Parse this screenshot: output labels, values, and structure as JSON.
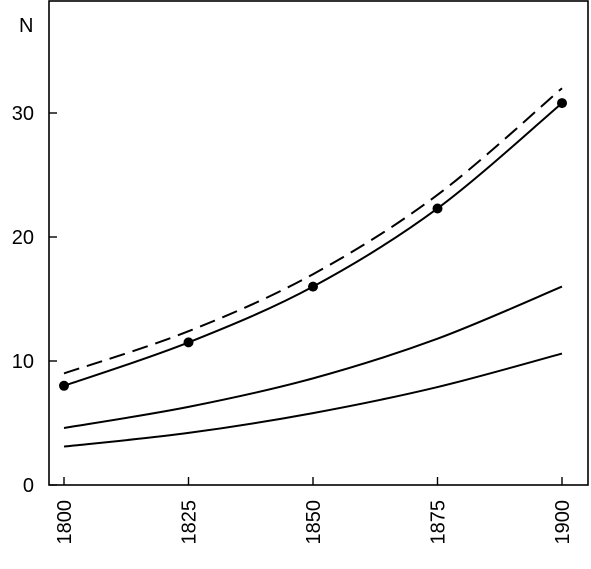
{
  "chart_data": {
    "type": "line",
    "title": "",
    "xlabel": "",
    "ylabel": "N",
    "xlim": [
      1800,
      1900
    ],
    "ylim": [
      0,
      38
    ],
    "x_ticks": [
      1800,
      1825,
      1850,
      1875,
      1900
    ],
    "y_ticks": [
      0,
      10,
      20,
      30
    ],
    "grid": false,
    "series": [
      {
        "style": "solid-with-markers",
        "x": [
          1800,
          1825,
          1850,
          1875,
          1900
        ],
        "y": [
          8.0,
          11.5,
          16.0,
          22.3,
          30.8
        ]
      },
      {
        "style": "dashed",
        "x": [
          1800,
          1825,
          1850,
          1875,
          1900
        ],
        "y": [
          9.0,
          12.4,
          17.0,
          23.4,
          32.0
        ]
      },
      {
        "style": "solid",
        "x": [
          1800,
          1825,
          1850,
          1875,
          1900
        ],
        "y": [
          4.6,
          6.3,
          8.6,
          11.8,
          16.0
        ]
      },
      {
        "style": "solid",
        "x": [
          1800,
          1825,
          1850,
          1875,
          1900
        ],
        "y": [
          3.1,
          4.2,
          5.8,
          7.9,
          10.6
        ]
      }
    ]
  }
}
